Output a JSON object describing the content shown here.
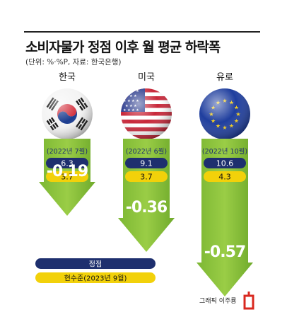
{
  "title": "소비자물가 정점 이후 월 평균 하락폭",
  "subtitle": "(단위: %·%P, 자료: 한국은행)",
  "credit": "그래픽 이주룡",
  "colors": {
    "arrow": "#8DC63F",
    "arrow_dark": "#6AA52A",
    "peak_badge": "#1E2F6E",
    "current_badge": "#F2D10A",
    "drop_text": "#FFFFFF",
    "credit_mark": "#D9281F"
  },
  "chart_data": {
    "type": "bar",
    "categories": [
      "한국",
      "미국",
      "유로"
    ],
    "peak_dates": [
      "(2022년 7월)",
      "(2022년 6월)",
      "(2022년 10월)"
    ],
    "series": [
      {
        "name": "정점",
        "values": [
          6.3,
          9.1,
          10.6
        ]
      },
      {
        "name": "현수준(2023년 9월)",
        "values": [
          3.7,
          3.7,
          4.3
        ]
      }
    ],
    "drop": [
      -0.19,
      -0.36,
      -0.57
    ],
    "drop_labels": [
      "-0.19",
      "-0.36",
      "-0.57"
    ],
    "legend": {
      "placement": "bottom-left",
      "entries": [
        "정점",
        "현수준(2023년 9월)"
      ]
    }
  }
}
